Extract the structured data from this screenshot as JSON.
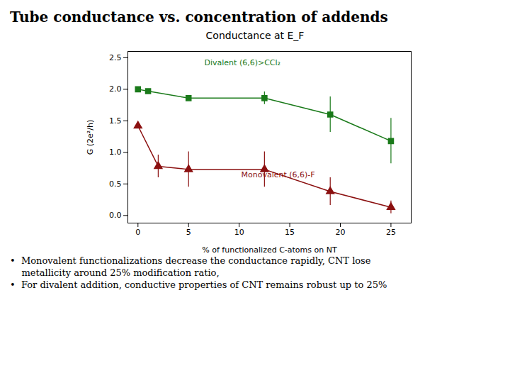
{
  "chart_data": {
    "type": "line",
    "title": "Tube conductance vs. concentration of addends",
    "subtitle": "Conductance at E_F",
    "x_label": "% of functionalized C-atoms on NT",
    "y_label": "G (2e²/h)",
    "series": [
      {
        "name": "Divalent (6,6)>CCl₂",
        "color": "#1a7a1a",
        "marker": "square",
        "x": [
          0,
          1,
          5,
          12.5,
          19,
          25
        ],
        "values": [
          2.0,
          1.97,
          1.86,
          1.86,
          1.6,
          1.18
        ],
        "yerr": [
          0.0,
          0.0,
          0.0,
          0.1,
          0.28,
          0.36
        ]
      },
      {
        "name": "Monovalent (6,6)-F",
        "color": "#8b1010",
        "marker": "triangle",
        "x": [
          0,
          2,
          5,
          12.5,
          19,
          25
        ],
        "values": [
          1.42,
          0.78,
          0.73,
          0.73,
          0.38,
          0.13
        ],
        "yerr": [
          0.0,
          0.18,
          0.28,
          0.28,
          0.22,
          0.1
        ]
      }
    ],
    "xlim": [
      -1,
      27
    ],
    "ylim": [
      -0.12,
      2.6
    ],
    "xticks": [
      0,
      5,
      10,
      15,
      20,
      25
    ],
    "yticks": [
      {
        "value": 0.0,
        "label": "0.0"
      },
      0.5,
      {
        "value": 1.0,
        "label": "1.0"
      },
      1.5,
      {
        "value": 2.0,
        "label": "2.0"
      },
      2.5
    ],
    "annotations": [
      "•  Monovalent functionalizations decrease the conductance rapidly, CNT lose",
      "    metallicity around 25% modification ratio,",
      "•  For divalent addition, conductive properties of CNT remains robust up to 25%"
    ]
  }
}
